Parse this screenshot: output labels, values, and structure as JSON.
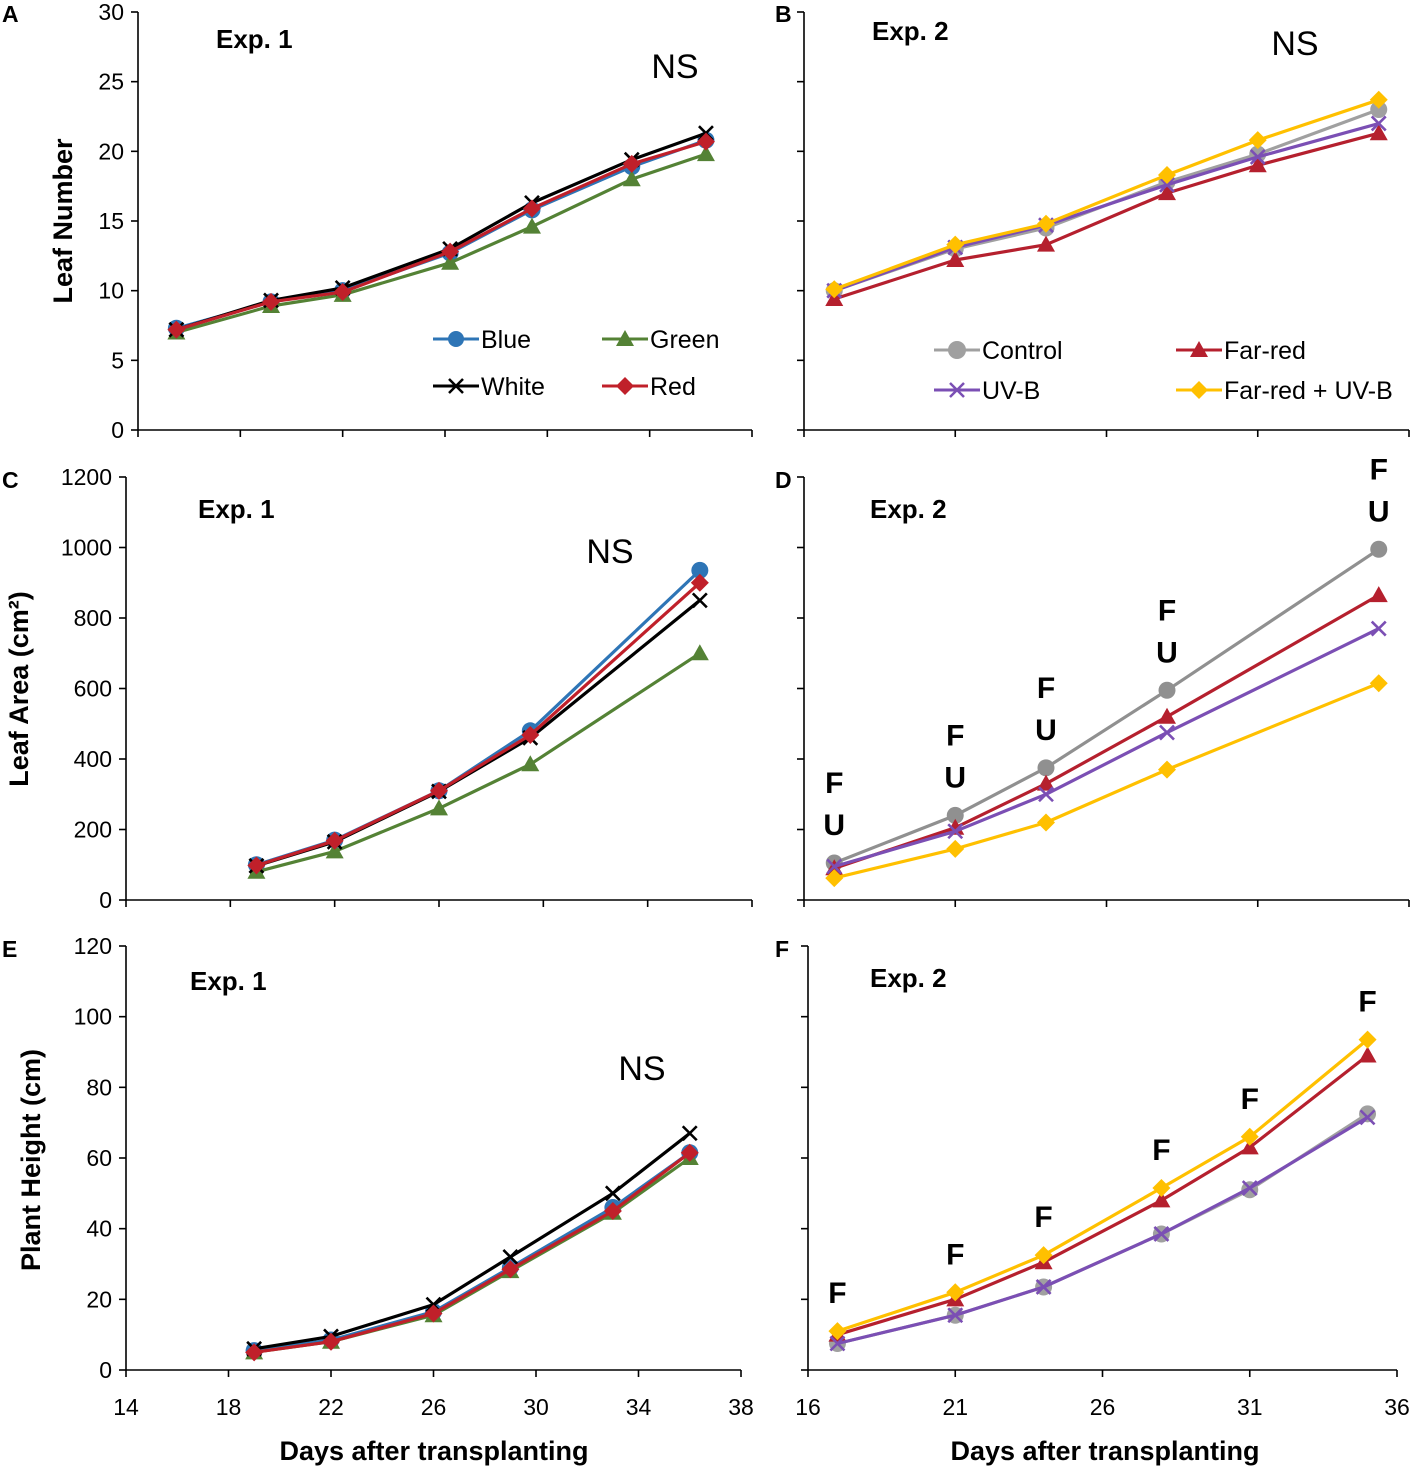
{
  "chart_data": [
    {
      "type": "line",
      "panel": "A",
      "label": "Exp. 1",
      "note": "NS",
      "ylabel": "Leaf Number",
      "ylim": [
        0,
        30
      ],
      "yticks": [
        "0",
        "5",
        "10",
        "15",
        "20",
        "25",
        "30"
      ],
      "xlim": [
        14,
        38
      ],
      "xlabel": "",
      "series": [
        {
          "name": "Blue",
          "color": "#2e75b6",
          "marker": "circle",
          "x": [
            15.5,
            19.2,
            22,
            26.2,
            29.4,
            33.3,
            36.2
          ],
          "y": [
            7.3,
            9.2,
            10.0,
            12.7,
            15.8,
            18.9,
            20.8
          ]
        },
        {
          "name": "Green",
          "color": "#548235",
          "marker": "triangle",
          "x": [
            15.5,
            19.2,
            22,
            26.2,
            29.4,
            33.3,
            36.2
          ],
          "y": [
            7.0,
            8.9,
            9.7,
            12.0,
            14.6,
            18.0,
            19.8
          ]
        },
        {
          "name": "White",
          "color": "#000000",
          "marker": "x",
          "x": [
            15.5,
            19.2,
            22,
            26.2,
            29.4,
            33.3,
            36.2
          ],
          "y": [
            7.2,
            9.3,
            10.2,
            13.0,
            16.3,
            19.4,
            21.3
          ]
        },
        {
          "name": "Red",
          "color": "#c0202a",
          "marker": "diamond",
          "x": [
            15.5,
            19.2,
            22,
            26.2,
            29.4,
            33.3,
            36.2
          ],
          "y": [
            7.2,
            9.2,
            9.9,
            12.8,
            15.9,
            19.1,
            20.7
          ]
        }
      ]
    },
    {
      "type": "line",
      "panel": "B",
      "label": "Exp. 2",
      "note": "NS",
      "ylim": [
        0,
        30
      ],
      "xlim": [
        16,
        36
      ],
      "xlabel": "",
      "series": [
        {
          "name": "Control",
          "color": "#a0a0a0",
          "marker": "circle",
          "x": [
            17,
            21,
            24,
            28,
            31,
            35
          ],
          "y": [
            10.0,
            13.0,
            14.5,
            17.8,
            19.8,
            23.0
          ]
        },
        {
          "name": "Far-red",
          "color": "#b5202e",
          "marker": "triangle",
          "x": [
            17,
            21,
            24,
            28,
            31,
            35
          ],
          "y": [
            9.4,
            12.2,
            13.3,
            17.0,
            19.0,
            21.3
          ]
        },
        {
          "name": "UV-B",
          "color": "#7b4fb4",
          "marker": "x",
          "x": [
            17,
            21,
            24,
            28,
            31,
            35
          ],
          "y": [
            10.0,
            13.1,
            14.7,
            17.6,
            19.6,
            22.0
          ]
        },
        {
          "name": "Far-red + UV-B",
          "color": "#ffc000",
          "marker": "diamond",
          "x": [
            17,
            21,
            24,
            28,
            31,
            35
          ],
          "y": [
            10.1,
            13.3,
            14.8,
            18.3,
            20.8,
            23.7
          ]
        }
      ]
    },
    {
      "type": "line",
      "panel": "C",
      "label": "Exp. 1",
      "note": "NS",
      "ylabel": "Leaf Area (cm²)",
      "ylim": [
        0,
        1200
      ],
      "yticks": [
        "0",
        "200",
        "400",
        "600",
        "800",
        "1000",
        "1200"
      ],
      "xlim": [
        14,
        38
      ],
      "xlabel": "",
      "series": [
        {
          "name": "Blue",
          "color": "#2e75b6",
          "marker": "circle",
          "x": [
            19,
            22,
            26,
            29.5,
            36
          ],
          "y": [
            100,
            170,
            310,
            480,
            935
          ]
        },
        {
          "name": "Green",
          "color": "#548235",
          "marker": "triangle",
          "x": [
            19,
            22,
            26,
            29.5,
            36
          ],
          "y": [
            80,
            138,
            260,
            385,
            700
          ]
        },
        {
          "name": "White",
          "color": "#000000",
          "marker": "x",
          "x": [
            19,
            22,
            26,
            29.5,
            36
          ],
          "y": [
            97,
            165,
            308,
            460,
            850
          ]
        },
        {
          "name": "Red",
          "color": "#c0202a",
          "marker": "diamond",
          "x": [
            19,
            22,
            26,
            29.5,
            36
          ],
          "y": [
            98,
            168,
            310,
            468,
            900
          ]
        }
      ]
    },
    {
      "type": "line",
      "panel": "D",
      "label": "Exp. 2",
      "ylim": [
        0,
        1200
      ],
      "xlim": [
        16,
        36
      ],
      "xlabel": "",
      "annotations": [
        {
          "x": 17,
          "lines": [
            "F",
            "U"
          ]
        },
        {
          "x": 21,
          "lines": [
            "F",
            "U"
          ]
        },
        {
          "x": 24,
          "lines": [
            "F",
            "U"
          ]
        },
        {
          "x": 28,
          "lines": [
            "F",
            "U"
          ]
        },
        {
          "x": 35,
          "lines": [
            "F",
            "U"
          ]
        }
      ],
      "series": [
        {
          "name": "Control",
          "color": "#909090",
          "marker": "circle",
          "x": [
            17,
            21,
            24,
            28,
            35
          ],
          "y": [
            105,
            240,
            375,
            595,
            995
          ]
        },
        {
          "name": "Far-red",
          "color": "#b5202e",
          "marker": "triangle",
          "x": [
            17,
            21,
            24,
            28,
            35
          ],
          "y": [
            90,
            205,
            330,
            520,
            865
          ]
        },
        {
          "name": "UV-B",
          "color": "#7b4fb4",
          "marker": "x",
          "x": [
            17,
            21,
            24,
            28,
            35
          ],
          "y": [
            95,
            195,
            300,
            475,
            770
          ]
        },
        {
          "name": "Far-red + UV-B",
          "color": "#ffc000",
          "marker": "diamond",
          "x": [
            17,
            21,
            24,
            28,
            35
          ],
          "y": [
            62,
            145,
            220,
            370,
            615
          ]
        }
      ]
    },
    {
      "type": "line",
      "panel": "E",
      "label": "Exp. 1",
      "note": "NS",
      "ylabel": "Plant Height (cm)",
      "ylim": [
        0,
        120
      ],
      "yticks": [
        "0",
        "20",
        "40",
        "60",
        "80",
        "100",
        "120"
      ],
      "xlim": [
        14,
        38
      ],
      "xticks": [
        "14",
        "18",
        "22",
        "26",
        "30",
        "34",
        "38"
      ],
      "xlabel": "Days after transplanting",
      "series": [
        {
          "name": "Blue",
          "color": "#2e75b6",
          "marker": "circle",
          "x": [
            19,
            22,
            26,
            29,
            33,
            36
          ],
          "y": [
            5.5,
            8.5,
            16.5,
            29.0,
            46.0,
            61.5
          ]
        },
        {
          "name": "Green",
          "color": "#548235",
          "marker": "triangle",
          "x": [
            19,
            22,
            26,
            29,
            33,
            36
          ],
          "y": [
            5.0,
            8.0,
            15.5,
            28.0,
            44.5,
            60.0
          ]
        },
        {
          "name": "White",
          "color": "#000000",
          "marker": "x",
          "x": [
            19,
            22,
            26,
            29,
            33,
            36
          ],
          "y": [
            6.0,
            9.5,
            18.5,
            32.0,
            50.0,
            67.0
          ]
        },
        {
          "name": "Red",
          "color": "#c0202a",
          "marker": "diamond",
          "x": [
            19,
            22,
            26,
            29,
            33,
            36
          ],
          "y": [
            5.0,
            8.0,
            16.0,
            28.5,
            45.0,
            61.5
          ]
        }
      ]
    },
    {
      "type": "line",
      "panel": "F",
      "label": "Exp. 2",
      "ylim": [
        0,
        120
      ],
      "xlim": [
        16,
        36
      ],
      "xticks": [
        "16",
        "21",
        "26",
        "31",
        "36"
      ],
      "xlabel": "Days after transplanting",
      "annotations": [
        {
          "x": 17,
          "lines": [
            "F"
          ]
        },
        {
          "x": 21,
          "lines": [
            "F"
          ]
        },
        {
          "x": 24,
          "lines": [
            "F"
          ]
        },
        {
          "x": 28,
          "lines": [
            "F"
          ]
        },
        {
          "x": 31,
          "lines": [
            "F"
          ]
        },
        {
          "x": 35,
          "lines": [
            "F"
          ]
        }
      ],
      "series": [
        {
          "name": "Control",
          "color": "#a0a0a0",
          "marker": "circle",
          "x": [
            17,
            21,
            24,
            28,
            31,
            35
          ],
          "y": [
            7.5,
            15.5,
            23.5,
            38.5,
            51.0,
            72.5
          ]
        },
        {
          "name": "Far-red",
          "color": "#b5202e",
          "marker": "triangle",
          "x": [
            17,
            21,
            24,
            28,
            31,
            35
          ],
          "y": [
            10.0,
            20.0,
            30.5,
            48.0,
            63.0,
            89.0
          ]
        },
        {
          "name": "UV-B",
          "color": "#7b4fb4",
          "marker": "x",
          "x": [
            17,
            21,
            24,
            28,
            31,
            35
          ],
          "y": [
            7.5,
            15.5,
            23.5,
            38.5,
            51.5,
            71.5
          ]
        },
        {
          "name": "Far-red + UV-B",
          "color": "#ffc000",
          "marker": "diamond",
          "x": [
            17,
            21,
            24,
            28,
            31,
            35
          ],
          "y": [
            11.0,
            22.0,
            32.5,
            51.5,
            66.0,
            93.5
          ]
        }
      ]
    }
  ]
}
